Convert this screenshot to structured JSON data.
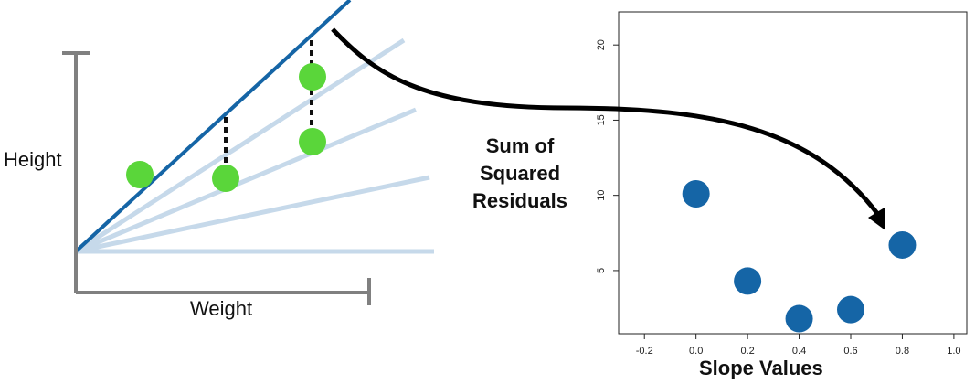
{
  "left_diagram": {
    "y_axis_label": "Height",
    "x_axis_label": "Weight",
    "colors": {
      "axes": "#808080",
      "fitted_line": "#1565a6",
      "candidate_lines": "#c6d9ea",
      "points": "#5ad63a",
      "residuals": "#111111"
    }
  },
  "right_axis_title_lines": [
    "Sum of",
    "Squared",
    "Residuals"
  ],
  "arrow_color": "#000000",
  "chart_data": {
    "type": "scatter",
    "title": "",
    "xlabel": "Slope Values",
    "ylabel": "Sum of Squared Residuals",
    "xlim": [
      -0.3,
      1.05
    ],
    "ylim": [
      0.8,
      22.2
    ],
    "xticks": [
      "-0.2",
      "0.0",
      "0.2",
      "0.4",
      "0.6",
      "0.8",
      "1.0"
    ],
    "yticks": [
      "5",
      "10",
      "15",
      "20"
    ],
    "point_color": "#1565a6",
    "points": [
      {
        "x": 0.0,
        "y": 10.1
      },
      {
        "x": 0.2,
        "y": 4.3
      },
      {
        "x": 0.4,
        "y": 1.8
      },
      {
        "x": 0.6,
        "y": 2.4
      },
      {
        "x": 0.8,
        "y": 6.7
      }
    ]
  }
}
